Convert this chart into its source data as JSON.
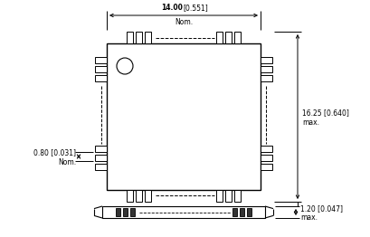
{
  "bg_color": "#ffffff",
  "line_color": "#000000",
  "dim_14_bold": "14.00",
  "dim_14_rest": "[0.551]",
  "dim_14_sub": "Nom.",
  "dim_1625_line1": "16.25 [0.640]",
  "dim_1625_line2": "max.",
  "dim_080_line1": "0.80 [0.031]",
  "dim_080_line2": "Nom.",
  "dim_120_line1": "1.20 [0.047]",
  "dim_120_line2": "max.",
  "fig_w": 4.09,
  "fig_h": 2.62,
  "dpi": 100
}
